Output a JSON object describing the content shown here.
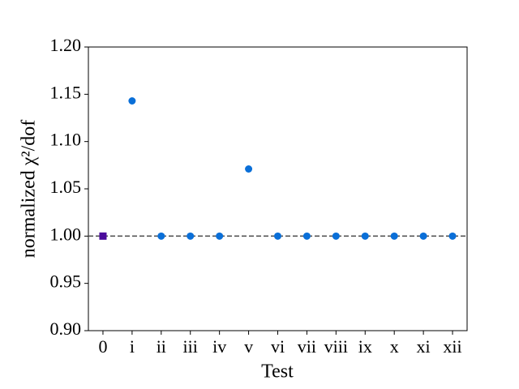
{
  "chart_data": {
    "type": "scatter",
    "xlabel": "Test",
    "ylabel": "normalized χ²/dof",
    "categories": [
      "0",
      "i",
      "ii",
      "iii",
      "iv",
      "v",
      "vi",
      "vii",
      "viii",
      "ix",
      "x",
      "xi",
      "xii"
    ],
    "series": [
      {
        "color": "#4b0c9c",
        "marker": "square",
        "values": [
          1.0,
          null,
          null,
          null,
          null,
          null,
          null,
          null,
          null,
          null,
          null,
          null,
          null
        ]
      },
      {
        "color": "#0a6fd8",
        "marker": "circle",
        "values": [
          null,
          1.143,
          1.0,
          1.0,
          1.0,
          1.071,
          1.0,
          1.0,
          1.0,
          1.0,
          1.0,
          1.0,
          1.0
        ]
      }
    ],
    "reference_line": {
      "value": 1.0,
      "color": "#555555",
      "style": "dashed"
    },
    "ylim": [
      0.9,
      1.2
    ],
    "yticks": [
      {
        "value": 0.9,
        "label": "0.90"
      },
      0.95,
      {
        "value": 1.0,
        "label": "1.00"
      },
      1.05,
      {
        "value": 1.1,
        "label": "1.10"
      },
      1.15,
      {
        "value": 1.2,
        "label": "1.20"
      }
    ],
    "grid": false
  }
}
